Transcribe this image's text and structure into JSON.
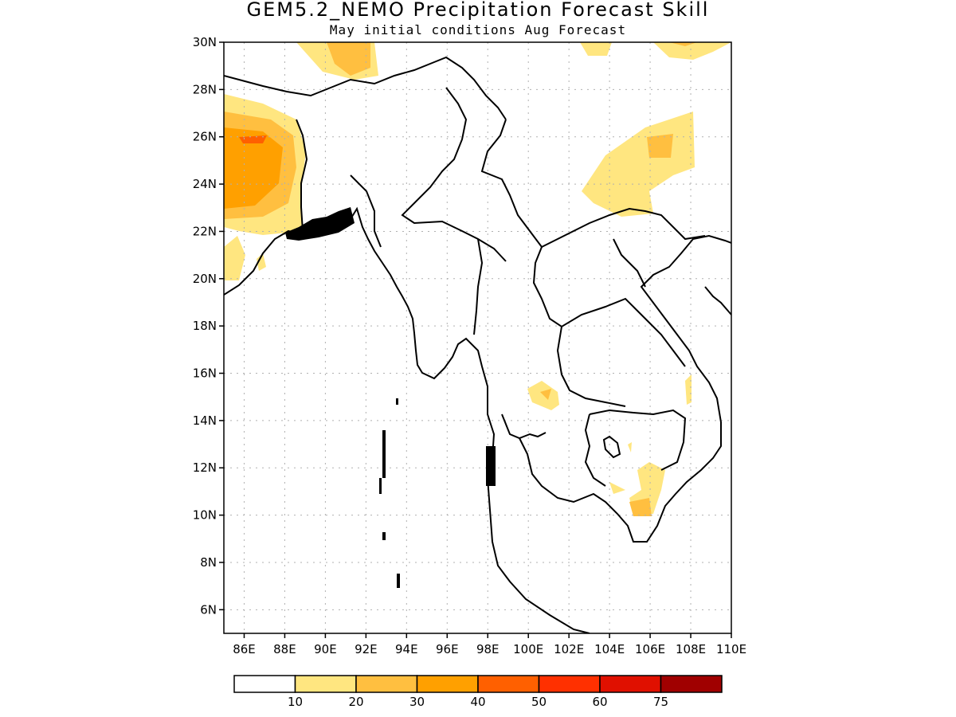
{
  "title": "GEM5.2_NEMO Precipitation Forecast Skill",
  "subtitle": "May initial conditions  Aug Forecast",
  "axes": {
    "lat_labels": [
      "30N",
      "28N",
      "26N",
      "24N",
      "22N",
      "20N",
      "18N",
      "16N",
      "14N",
      "12N",
      "10N",
      "8N",
      "6N"
    ],
    "lon_labels": [
      "86E",
      "88E",
      "90E",
      "92E",
      "94E",
      "96E",
      "98E",
      "100E",
      "102E",
      "104E",
      "106E",
      "108E",
      "110E"
    ],
    "lat_range": [
      5,
      30
    ],
    "lon_range": [
      85,
      110
    ]
  },
  "legend": {
    "labels": [
      "10",
      "20",
      "30",
      "40",
      "50",
      "60",
      "75"
    ],
    "colors": [
      "#ffffff",
      "#ffe680",
      "#ffbf40",
      "#ffa000",
      "#ff6000",
      "#ff3000",
      "#e01000",
      "#a00000"
    ]
  }
}
